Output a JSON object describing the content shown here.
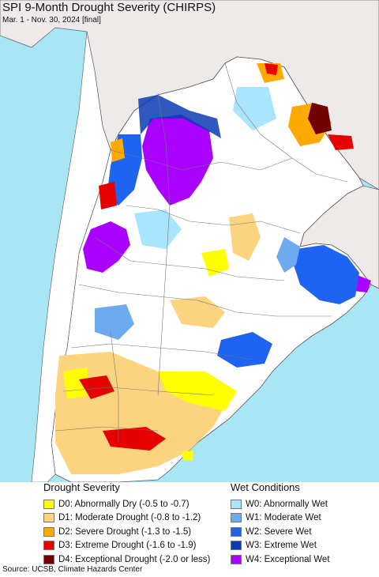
{
  "title": "SPI 9-Month Drought Severity (CHIRPS)",
  "subtitle": "Mar. 1 - Nov. 30, 2024 [final]",
  "legend": {
    "drought": {
      "heading": "Drought Severity",
      "items": [
        {
          "label": "D0: Abnormally Dry (-0.5 to -0.7)",
          "color": "#ffff00"
        },
        {
          "label": "D1: Moderate Drought (-0.8 to -1.2)",
          "color": "#fcd37f"
        },
        {
          "label": "D2: Severe Drought (-1.3 to -1.5)",
          "color": "#ffaa00"
        },
        {
          "label": "D3: Extreme Drought (-1.6 to -1.9)",
          "color": "#e60000"
        },
        {
          "label": "D4: Exceptional Drought (-2.0 or less)",
          "color": "#730000"
        }
      ]
    },
    "wet": {
      "heading": "Wet Conditions",
      "items": [
        {
          "label": "W0: Abnormally Wet",
          "color": "#aae5ff"
        },
        {
          "label": "W1: Moderate Wet",
          "color": "#6eaaf0"
        },
        {
          "label": "W2: Severe Wet",
          "color": "#1e64f0"
        },
        {
          "label": "W3: Extreme Wet",
          "color": "#0a3cb4"
        },
        {
          "label": "W4: Exceptional Wet",
          "color": "#aa00ff"
        }
      ]
    }
  },
  "source": "Source: UCSB, Climate Hazards Center",
  "colors": {
    "ocean": "#a8e6f5",
    "outside_land": "#eeeaea",
    "land": "#ffffff",
    "border": "#555555"
  }
}
